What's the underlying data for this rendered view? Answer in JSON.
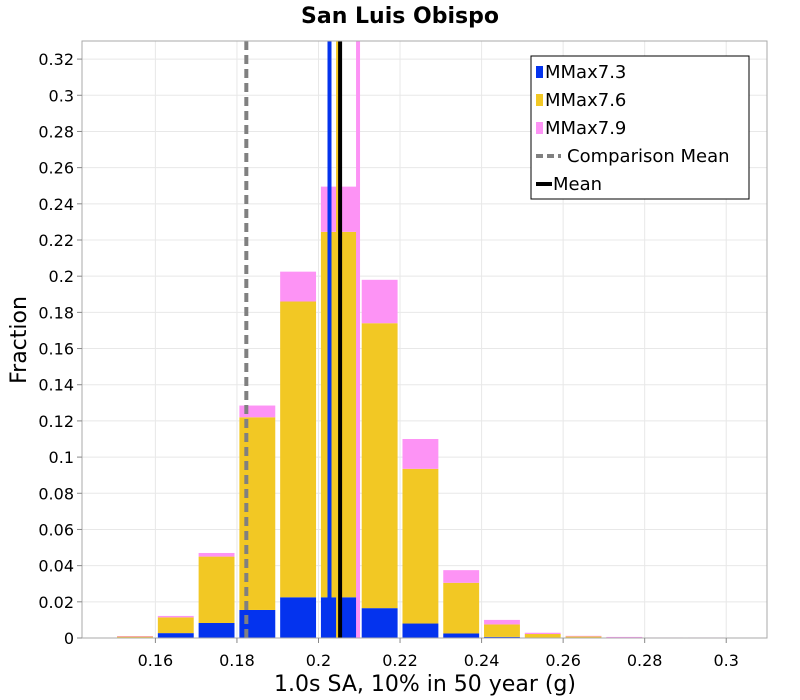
{
  "chart_data": {
    "type": "bar",
    "stacked": true,
    "title": "San Luis Obispo",
    "xlabel": "1.0s SA, 10% in 50 year (g)",
    "ylabel": "Fraction",
    "xlim": [
      0.142,
      0.31
    ],
    "ylim": [
      0,
      0.33
    ],
    "grid": true,
    "legend_position": "top-right",
    "x_ticks": [
      0.16,
      0.18,
      0.2,
      0.22,
      0.24,
      0.26,
      0.28,
      0.3
    ],
    "x_tick_labels": [
      "0.16",
      "0.18",
      "0.2",
      "0.22",
      "0.24",
      "0.26",
      "0.28",
      "0.3"
    ],
    "y_ticks": [
      0,
      0.02,
      0.04,
      0.06,
      0.08,
      0.1,
      0.12,
      0.14,
      0.16,
      0.18,
      0.2,
      0.22,
      0.24,
      0.26,
      0.28,
      0.3,
      0.32
    ],
    "y_tick_labels": [
      "0",
      "0.02",
      "0.04",
      "0.06",
      "0.08",
      "0.1",
      "0.12",
      "0.14",
      "0.16",
      "0.18",
      "0.2",
      "0.22",
      "0.24",
      "0.26",
      "0.28",
      "0.3",
      "0.32"
    ],
    "bin_width": 0.01,
    "bin_centers": [
      0.155,
      0.165,
      0.175,
      0.185,
      0.195,
      0.205,
      0.215,
      0.225,
      0.235,
      0.245,
      0.255,
      0.265,
      0.275,
      0.285,
      0.295
    ],
    "series": [
      {
        "name": "MMax7.3",
        "color": "#0433ee",
        "values": [
          0.0003,
          0.0027,
          0.0083,
          0.0155,
          0.0225,
          0.0225,
          0.0165,
          0.008,
          0.0025,
          0.0006,
          0.0002,
          0.0001,
          0,
          0,
          0
        ]
      },
      {
        "name": "MMax7.6",
        "color": "#f2c824",
        "values": [
          0.0007,
          0.0087,
          0.0367,
          0.1065,
          0.1635,
          0.202,
          0.1575,
          0.0855,
          0.028,
          0.0069,
          0.002,
          0.0008,
          0.0004,
          0.0002,
          0.0002
        ]
      },
      {
        "name": "MMax7.9",
        "color": "#fd93f5",
        "values": [
          0.0001,
          0.0008,
          0.002,
          0.0065,
          0.0165,
          0.025,
          0.024,
          0.0165,
          0.007,
          0.0025,
          0.0007,
          0.0003,
          0.0002,
          0.0001,
          0.0001
        ]
      }
    ],
    "vertical_lines": [
      {
        "name": "Comparison Mean",
        "x": 0.1823,
        "color": "#808080",
        "style": "dashed"
      },
      {
        "name": "MMax7.3",
        "x": 0.2027,
        "color": "#0433ee",
        "style": "solid"
      },
      {
        "name": "MMax7.6",
        "x": 0.2048,
        "color": "#f2c824",
        "style": "solid"
      },
      {
        "name": "MMax7.9",
        "x": 0.2097,
        "color": "#fd93f5",
        "style": "solid"
      },
      {
        "name": "Mean",
        "x": 0.2053,
        "color": "#000000",
        "style": "solid"
      }
    ],
    "legend": [
      {
        "label": "MMax7.3",
        "type": "patch",
        "color": "#0433ee"
      },
      {
        "label": "MMax7.6",
        "type": "patch",
        "color": "#f2c824"
      },
      {
        "label": "MMax7.9",
        "type": "patch",
        "color": "#fd93f5"
      },
      {
        "label": "Comparison Mean",
        "type": "dashed-line",
        "color": "#808080"
      },
      {
        "label": "Mean",
        "type": "line",
        "color": "#000000"
      }
    ]
  }
}
